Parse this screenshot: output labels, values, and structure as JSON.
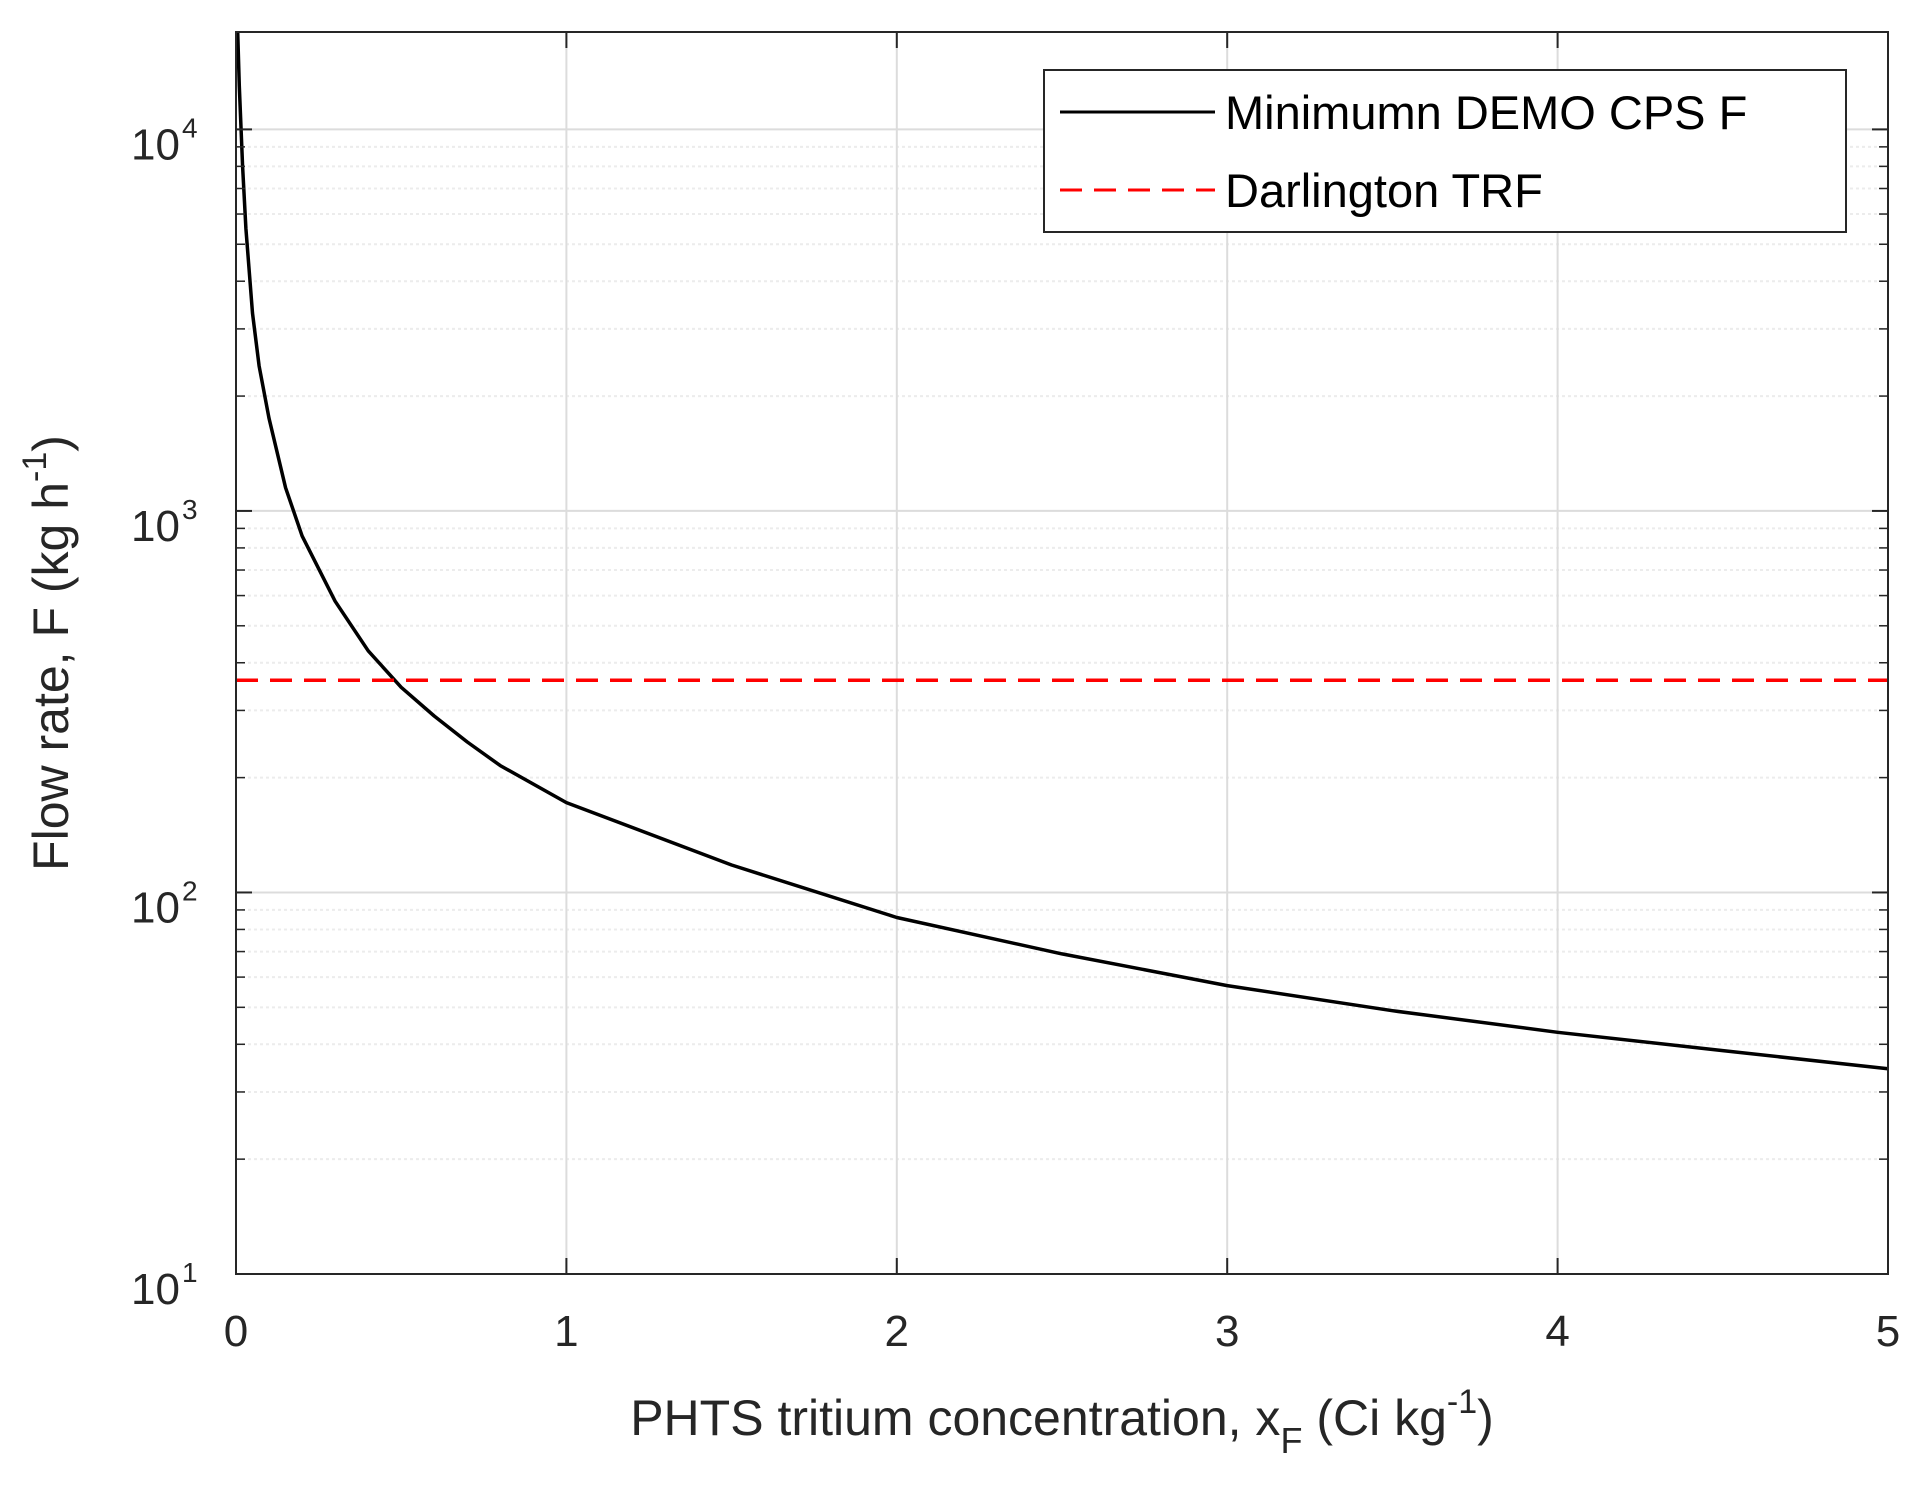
{
  "chart_data": {
    "type": "line",
    "xscale": "linear",
    "yscale": "log",
    "xlabel": "PHTS tritium concentration, x",
    "xlabel_sub": "F",
    "xlabel_unit": " (Ci kg",
    "xlabel_unit_sup": "-1",
    "xlabel_close": ")",
    "ylabel": "Flow rate, F (kg h",
    "ylabel_sup": "-1",
    "ylabel_close": ")",
    "xlim": [
      0,
      5
    ],
    "ylim": [
      10,
      18000
    ],
    "xticks": [
      {
        "value": 0,
        "label": "0"
      },
      {
        "value": 1,
        "label": "1"
      },
      {
        "value": 2,
        "label": "2"
      },
      {
        "value": 3,
        "label": "3"
      },
      {
        "value": 4,
        "label": "4"
      },
      {
        "value": 5,
        "label": "5"
      }
    ],
    "yticks": [
      {
        "value": 10,
        "base": "10",
        "exp": "1"
      },
      {
        "value": 100,
        "base": "10",
        "exp": "2"
      },
      {
        "value": 1000,
        "base": "10",
        "exp": "3"
      },
      {
        "value": 10000,
        "base": "10",
        "exp": "4"
      }
    ],
    "grid": true,
    "legend_position": "top-right",
    "series": [
      {
        "name": "Minimumn DEMO CPS F",
        "color": "#000000",
        "style": "solid",
        "x": [
          0.005,
          0.01,
          0.02,
          0.03,
          0.05,
          0.07,
          0.1,
          0.15,
          0.2,
          0.3,
          0.4,
          0.5,
          0.6,
          0.7,
          0.8,
          1.0,
          1.5,
          2.0,
          2.5,
          3.0,
          3.5,
          4.0,
          4.5,
          5.0
        ],
        "y": [
          18000,
          13000,
          8000,
          5500,
          3300,
          2400,
          1750,
          1150,
          860,
          580,
          430,
          345,
          290,
          248,
          215,
          172,
          118,
          86,
          69,
          57,
          49,
          43,
          38.5,
          34.5
        ]
      },
      {
        "name": "Darlington TRF",
        "color": "#ff0000",
        "style": "dashed",
        "x": [
          0,
          5
        ],
        "y": [
          360,
          360
        ]
      }
    ]
  }
}
